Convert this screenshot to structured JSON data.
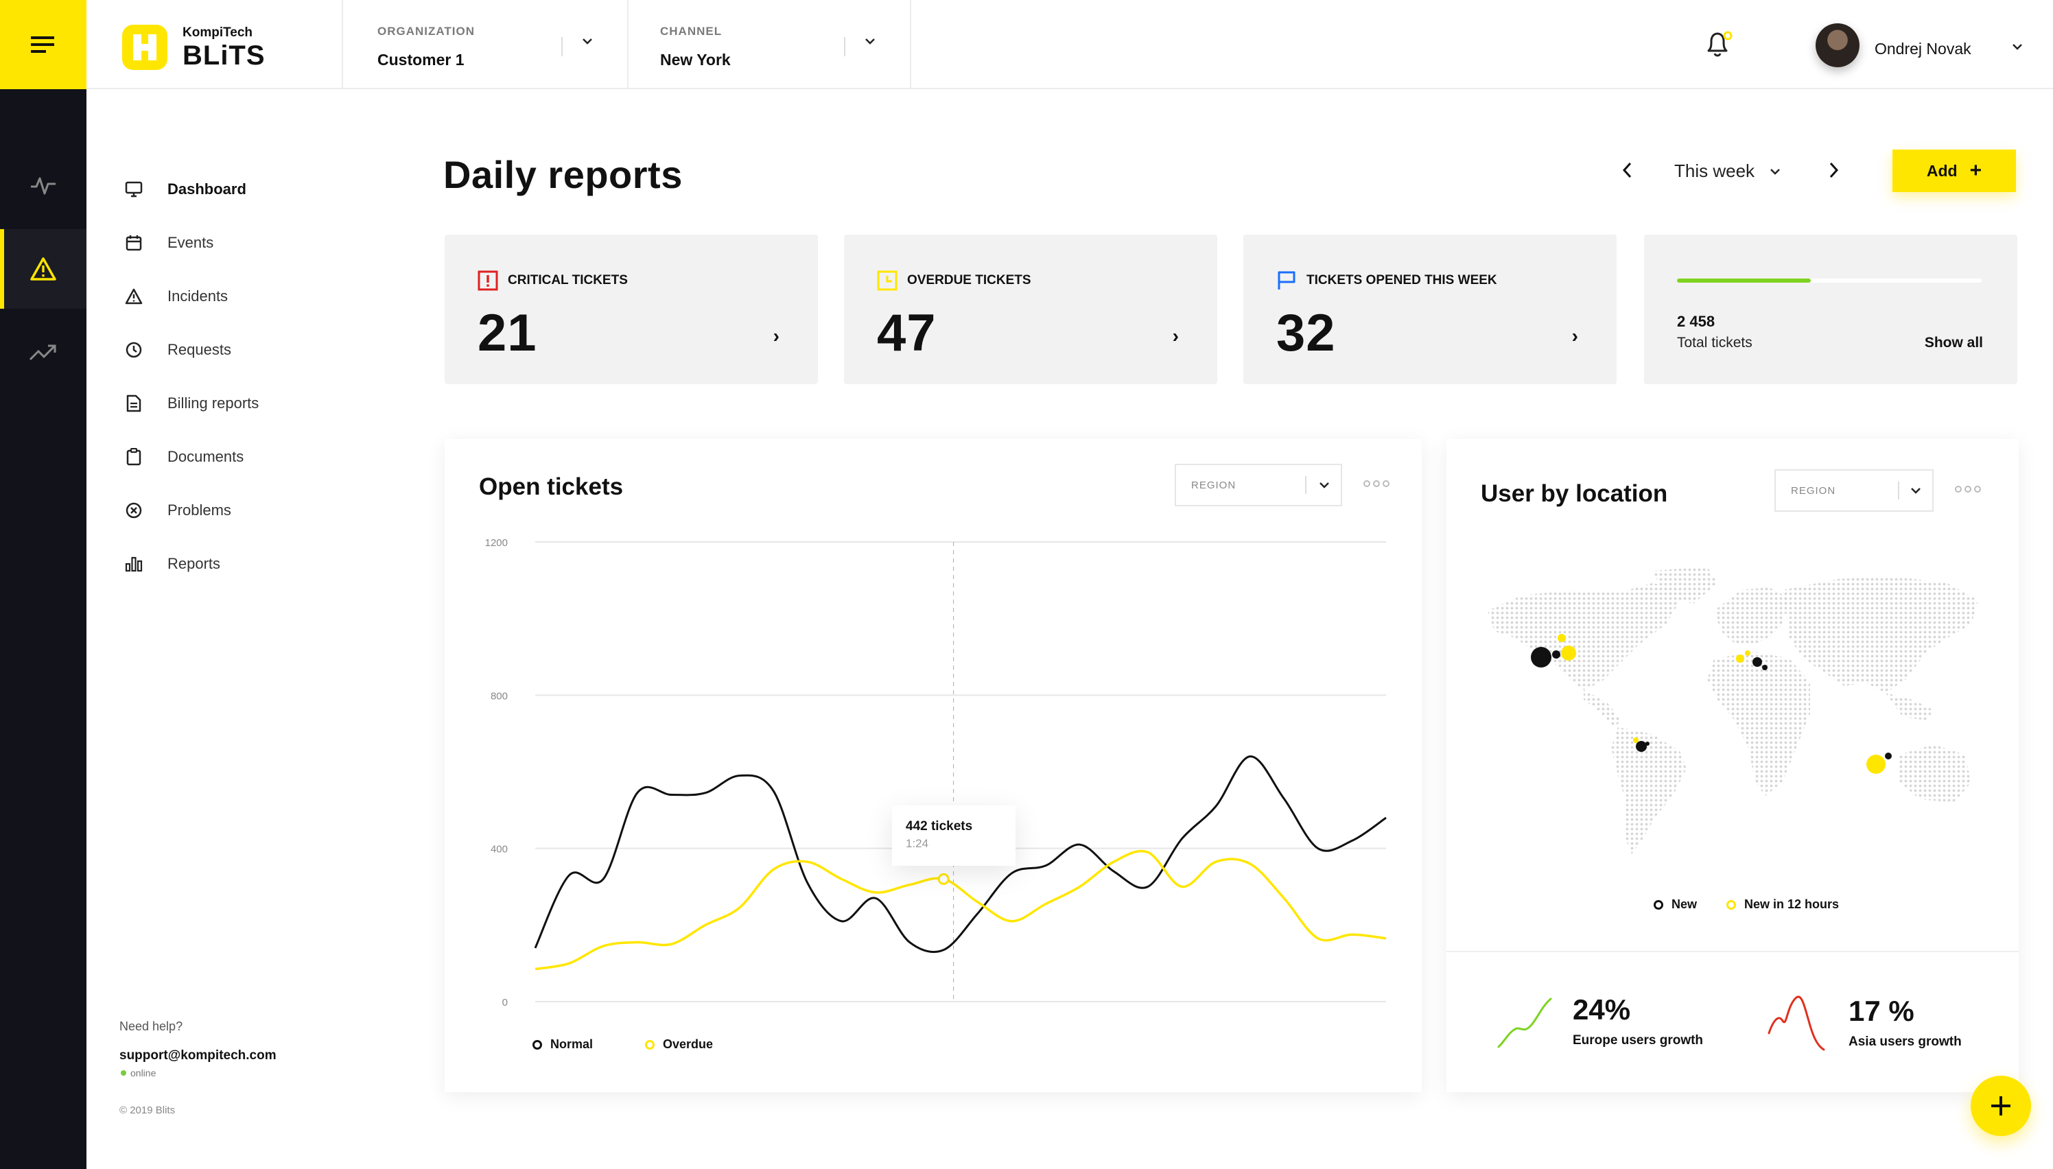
{
  "brand": {
    "company": "KompiTech",
    "product": "BLiTS"
  },
  "header": {
    "organization": {
      "label": "ORGANIZATION",
      "value": "Customer 1"
    },
    "channel": {
      "label": "CHANNEL",
      "value": "New York"
    },
    "user": {
      "name": "Ondrej Novak"
    }
  },
  "sidebar": {
    "items": [
      {
        "label": "Dashboard",
        "icon": "monitor-icon"
      },
      {
        "label": "Events",
        "icon": "calendar-icon"
      },
      {
        "label": "Incidents",
        "icon": "warning-icon"
      },
      {
        "label": "Requests",
        "icon": "clock-icon"
      },
      {
        "label": "Billing reports",
        "icon": "file-icon"
      },
      {
        "label": "Documents",
        "icon": "clipboard-icon"
      },
      {
        "label": "Problems",
        "icon": "x-circle-icon"
      },
      {
        "label": "Reports",
        "icon": "bar-chart-icon"
      }
    ],
    "help": {
      "label": "Need help?",
      "email": "support@kompitech.com",
      "status": "online"
    },
    "copyright": "© 2019 Blits"
  },
  "page": {
    "title": "Daily reports",
    "period": "This week",
    "add_label": "Add",
    "add_symbol": "+"
  },
  "colors": {
    "accent": "#ffe600",
    "critical": "#e02020",
    "blue": "#1a6dff",
    "dark": "#12131a"
  },
  "cards": [
    {
      "title": "CRITICAL TICKETS",
      "value": "21"
    },
    {
      "title": "OVERDUE TICKETS",
      "value": "47"
    },
    {
      "title": "TICKETS OPENED THIS WEEK",
      "value": "32"
    }
  ],
  "total": {
    "value": "2 458",
    "label": "Total tickets",
    "link": "Show all",
    "progress": 0.44
  },
  "open_tickets": {
    "title": "Open tickets",
    "region_label": "REGION",
    "tooltip": {
      "title": "442 tickets",
      "sub": "1:24"
    },
    "legend": [
      "Normal",
      "Overdue"
    ]
  },
  "chart_data": {
    "type": "line",
    "ylim": [
      0,
      1200
    ],
    "yticks": [
      "1200",
      "800",
      "400",
      "0"
    ],
    "series": [
      {
        "name": "Normal",
        "values": [
          140,
          330,
          320,
          545,
          540,
          545,
          590,
          550,
          310,
          210,
          270,
          155,
          135,
          230,
          335,
          355,
          410,
          340,
          300,
          425,
          510,
          640,
          530,
          400,
          420,
          480
        ]
      },
      {
        "name": "Overdue",
        "values": [
          85,
          100,
          145,
          155,
          150,
          200,
          245,
          345,
          365,
          320,
          285,
          305,
          320,
          260,
          210,
          255,
          300,
          365,
          390,
          300,
          365,
          360,
          270,
          165,
          175,
          165
        ]
      }
    ]
  },
  "location": {
    "title": "User by location",
    "region_label": "REGION",
    "legend": [
      "New",
      "New in 12 hours"
    ],
    "stats": [
      {
        "value": "24%",
        "label": "Europe users growth"
      },
      {
        "value": "17 %",
        "label": "Asia users growth"
      }
    ]
  }
}
